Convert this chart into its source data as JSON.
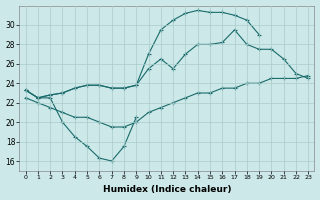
{
  "xlabel": "Humidex (Indice chaleur)",
  "background_color": "#cce8e8",
  "grid_color": "#aacccc",
  "line_color": "#1a6b6b",
  "xlim": [
    -0.5,
    23.5
  ],
  "ylim": [
    15,
    32
  ],
  "xticks": [
    0,
    1,
    2,
    3,
    4,
    5,
    6,
    7,
    8,
    9,
    10,
    11,
    12,
    13,
    14,
    15,
    16,
    17,
    18,
    19,
    20,
    21,
    22,
    23
  ],
  "yticks": [
    16,
    18,
    20,
    22,
    24,
    26,
    28,
    30
  ],
  "line_upper_x": [
    0,
    1,
    2,
    3,
    4,
    5,
    6,
    7,
    8,
    9,
    10,
    11,
    12,
    13,
    14,
    15,
    16,
    17,
    18,
    19
  ],
  "line_upper_y": [
    23.3,
    22.5,
    22.8,
    23.0,
    23.5,
    23.8,
    23.8,
    23.5,
    23.5,
    23.8,
    27.0,
    29.5,
    30.5,
    31.2,
    31.5,
    31.3,
    31.3,
    31.0,
    30.5,
    29.0
  ],
  "line_mid1_x": [
    0,
    1,
    2,
    3,
    4,
    5,
    6,
    7,
    8,
    9,
    10,
    11,
    12,
    13,
    14,
    15,
    16,
    17,
    18,
    19,
    20,
    21,
    22,
    23
  ],
  "line_mid1_y": [
    23.3,
    22.5,
    22.8,
    23.0,
    23.5,
    23.8,
    23.8,
    23.5,
    23.5,
    23.8,
    25.5,
    26.5,
    25.5,
    27.0,
    28.0,
    28.0,
    28.2,
    29.5,
    28.0,
    27.5,
    27.5,
    26.5,
    25.0,
    24.5
  ],
  "line_mid2_x": [
    0,
    1,
    2,
    3,
    4,
    5,
    6,
    7,
    8,
    9,
    10,
    11,
    12,
    13,
    14,
    15,
    16,
    17,
    18,
    19,
    20,
    21,
    22,
    23
  ],
  "line_mid2_y": [
    22.5,
    22.0,
    21.5,
    21.0,
    20.5,
    20.5,
    20.0,
    19.5,
    19.5,
    20.0,
    21.0,
    21.5,
    22.0,
    22.5,
    23.0,
    23.0,
    23.5,
    23.5,
    24.0,
    24.0,
    24.5,
    24.5,
    24.5,
    24.8
  ],
  "line_low_x": [
    0,
    1,
    2,
    3,
    4,
    5,
    6,
    7,
    8,
    9
  ],
  "line_low_y": [
    23.3,
    22.5,
    22.5,
    20.0,
    18.5,
    17.5,
    16.3,
    16.0,
    17.5,
    20.5
  ]
}
